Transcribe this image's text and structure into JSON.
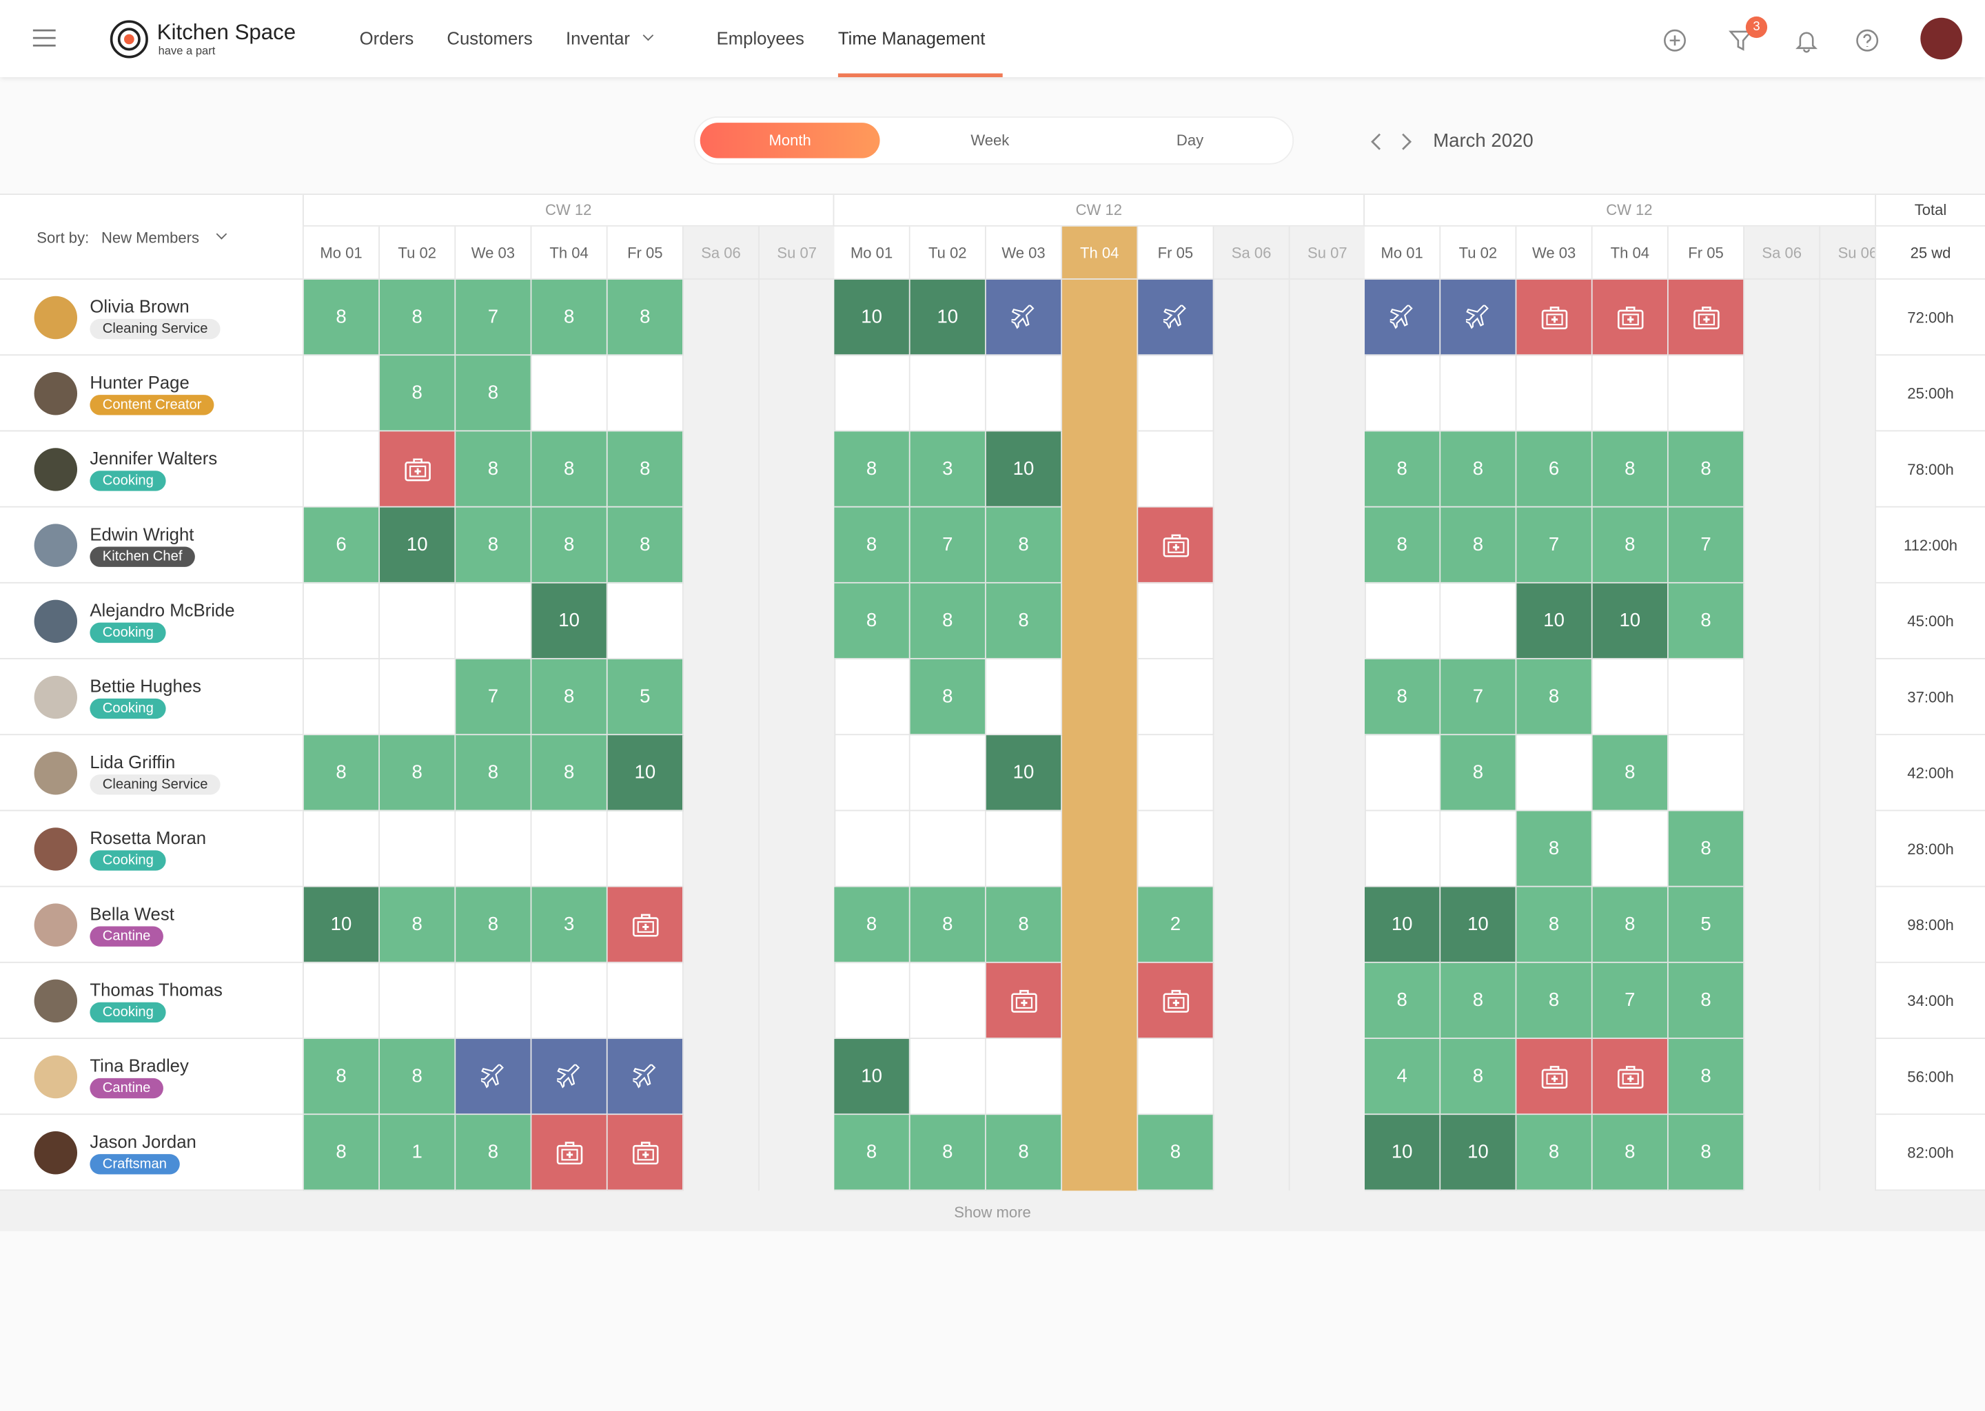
{
  "header": {
    "logo": {
      "title": "Kitchen Space",
      "tagline": "have a part"
    },
    "nav": [
      "Orders",
      "Customers",
      "Inventar",
      "Employees",
      "Time Management"
    ],
    "active_nav": 4,
    "filter_badge": "3"
  },
  "toolbar": {
    "tabs": [
      "Month",
      "Week",
      "Day"
    ],
    "active_tab": 0,
    "period": "March 2020"
  },
  "schedule": {
    "sort_label": "Sort by:",
    "sort_value": "New Members",
    "total_label": "Total",
    "total_sub": "25 wd",
    "show_more": "Show more",
    "weeks": [
      {
        "label": "CW 12",
        "days": [
          "Mo 01",
          "Tu 02",
          "We 03",
          "Th 04",
          "Fr 05",
          "Sa 06",
          "Su 07"
        ]
      },
      {
        "label": "CW 12",
        "days": [
          "Mo 01",
          "Tu 02",
          "We 03",
          "Th 04",
          "Fr 05",
          "Sa 06",
          "Su 07"
        ],
        "today": 3
      },
      {
        "label": "CW 12",
        "days": [
          "Mo 01",
          "Tu 02",
          "We 03",
          "Th 04",
          "Fr 05",
          "Sa 06",
          "Su 06"
        ]
      }
    ],
    "rows": [
      {
        "name": "Olivia Brown",
        "role": "Cleaning Service",
        "role_color": "#ececec",
        "cells": [
          [
            8,
            8,
            7,
            8,
            8
          ],
          [
            10,
            10,
            "vacation",
            null,
            "vacation"
          ],
          [
            "vacation",
            "vacation",
            "sick",
            "sick",
            "sick"
          ]
        ],
        "total": "72:00h"
      },
      {
        "name": "Hunter Page",
        "role": "Content Creator",
        "role_color": "#e0a134",
        "cells": [
          [
            null,
            8,
            8,
            null,
            null
          ],
          [
            null,
            null,
            null,
            null,
            null
          ],
          [
            null,
            null,
            null,
            null,
            null
          ]
        ],
        "total": "25:00h"
      },
      {
        "name": "Jennifer Walters",
        "role": "Cooking",
        "role_color": "#3db7a6",
        "cells": [
          [
            null,
            "sick",
            8,
            8,
            8
          ],
          [
            8,
            3,
            10,
            null,
            null
          ],
          [
            8,
            8,
            6,
            8,
            8
          ]
        ],
        "total": "78:00h"
      },
      {
        "name": "Edwin Wright",
        "role": "Kitchen Chef",
        "role_color": "#555555",
        "cells": [
          [
            6,
            10,
            8,
            8,
            8
          ],
          [
            8,
            7,
            8,
            null,
            "sick"
          ],
          [
            8,
            8,
            7,
            8,
            7
          ]
        ],
        "total": "112:00h"
      },
      {
        "name": "Alejandro McBride",
        "role": "Cooking",
        "role_color": "#3db7a6",
        "cells": [
          [
            null,
            null,
            null,
            10,
            null
          ],
          [
            8,
            8,
            8,
            null,
            null
          ],
          [
            null,
            null,
            10,
            10,
            8
          ]
        ],
        "total": "45:00h"
      },
      {
        "name": "Bettie Hughes",
        "role": "Cooking",
        "role_color": "#3db7a6",
        "cells": [
          [
            null,
            null,
            7,
            8,
            5
          ],
          [
            null,
            8,
            null,
            null,
            null
          ],
          [
            8,
            7,
            8,
            null,
            null
          ]
        ],
        "total": "37:00h"
      },
      {
        "name": "Lida Griffin",
        "role": "Cleaning Service",
        "role_color": "#ececec",
        "cells": [
          [
            8,
            8,
            8,
            8,
            10
          ],
          [
            null,
            null,
            10,
            null,
            null
          ],
          [
            null,
            8,
            null,
            8,
            null
          ]
        ],
        "total": "42:00h"
      },
      {
        "name": "Rosetta Moran",
        "role": "Cooking",
        "role_color": "#3db7a6",
        "cells": [
          [
            null,
            null,
            null,
            null,
            null
          ],
          [
            null,
            null,
            null,
            null,
            null
          ],
          [
            null,
            null,
            8,
            null,
            8
          ]
        ],
        "total": "28:00h"
      },
      {
        "name": "Bella West",
        "role": "Cantine",
        "role_color": "#b05aa6",
        "cells": [
          [
            10,
            8,
            8,
            3,
            "sick"
          ],
          [
            8,
            8,
            8,
            null,
            2
          ],
          [
            10,
            10,
            8,
            8,
            5
          ]
        ],
        "total": "98:00h"
      },
      {
        "name": "Thomas Thomas",
        "role": "Cooking",
        "role_color": "#3db7a6",
        "cells": [
          [
            null,
            null,
            null,
            null,
            null
          ],
          [
            null,
            null,
            "sick",
            null,
            "sick"
          ],
          [
            8,
            8,
            8,
            7,
            8
          ]
        ],
        "total": "34:00h"
      },
      {
        "name": "Tina Bradley",
        "role": "Cantine",
        "role_color": "#b05aa6",
        "cells": [
          [
            8,
            8,
            "vacation",
            "vacation",
            "vacation"
          ],
          [
            10,
            null,
            null,
            null,
            null
          ],
          [
            4,
            8,
            "sick",
            "sick",
            8
          ]
        ],
        "total": "56:00h"
      },
      {
        "name": "Jason Jordan",
        "role": "Craftsman",
        "role_color": "#4a8dd6",
        "cells": [
          [
            8,
            1,
            8,
            "sick",
            "sick"
          ],
          [
            8,
            8,
            8,
            null,
            8
          ],
          [
            10,
            10,
            8,
            8,
            8
          ]
        ],
        "total": "82:00h"
      }
    ]
  }
}
